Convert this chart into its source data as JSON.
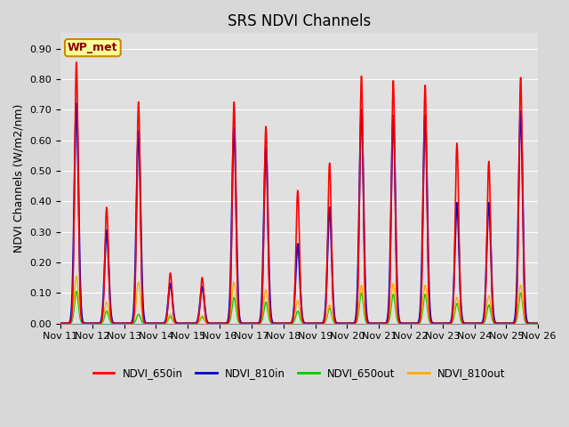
{
  "title": "SRS NDVI Channels",
  "ylabel": "NDVI Channels (W/m2/nm)",
  "site_label": "WP_met",
  "ylim": [
    0.0,
    0.95
  ],
  "yticks": [
    0.0,
    0.1,
    0.2,
    0.3,
    0.4,
    0.5,
    0.6,
    0.7,
    0.8,
    0.9
  ],
  "colors": {
    "NDVI_650in": "#ff0000",
    "NDVI_810in": "#0000cd",
    "NDVI_650out": "#00cc00",
    "NDVI_810out": "#ffaa00"
  },
  "xtick_labels": [
    "Nov 11",
    "Nov 12",
    "Nov 13",
    "Nov 14",
    "Nov 15",
    "Nov 16",
    "Nov 17",
    "Nov 18",
    "Nov 19",
    "Nov 20",
    "Nov 21",
    "Nov 22",
    "Nov 23",
    "Nov 24",
    "Nov 25",
    "Nov 26"
  ],
  "background_color": "#e0e0e0",
  "grid_color": "#ffffff",
  "site_box_facecolor": "#ffff99",
  "site_box_edgecolor": "#cc8800",
  "title_fontsize": 12,
  "label_fontsize": 9,
  "tick_fontsize": 8,
  "peaks": [
    {
      "day": 11.5,
      "r": 0.855,
      "b": 0.72,
      "g": 0.105,
      "o": 0.155
    },
    {
      "day": 12.45,
      "r": 0.38,
      "b": 0.305,
      "g": 0.04,
      "o": 0.07
    },
    {
      "day": 13.45,
      "r": 0.725,
      "b": 0.63,
      "g": 0.03,
      "o": 0.135
    },
    {
      "day": 14.45,
      "r": 0.165,
      "b": 0.13,
      "g": 0.022,
      "o": 0.03
    },
    {
      "day": 15.45,
      "r": 0.15,
      "b": 0.12,
      "g": 0.02,
      "o": 0.025
    },
    {
      "day": 16.45,
      "r": 0.725,
      "b": 0.64,
      "g": 0.085,
      "o": 0.135
    },
    {
      "day": 17.45,
      "r": 0.645,
      "b": 0.575,
      "g": 0.07,
      "o": 0.11
    },
    {
      "day": 18.45,
      "r": 0.435,
      "b": 0.26,
      "g": 0.04,
      "o": 0.075
    },
    {
      "day": 19.45,
      "r": 0.525,
      "b": 0.38,
      "g": 0.05,
      "o": 0.06
    },
    {
      "day": 20.45,
      "r": 0.81,
      "b": 0.7,
      "g": 0.1,
      "o": 0.125
    },
    {
      "day": 21.45,
      "r": 0.795,
      "b": 0.68,
      "g": 0.095,
      "o": 0.13
    },
    {
      "day": 22.45,
      "r": 0.78,
      "b": 0.68,
      "g": 0.095,
      "o": 0.125
    },
    {
      "day": 23.45,
      "r": 0.59,
      "b": 0.395,
      "g": 0.065,
      "o": 0.085
    },
    {
      "day": 24.45,
      "r": 0.53,
      "b": 0.395,
      "g": 0.06,
      "o": 0.09
    },
    {
      "day": 25.45,
      "r": 0.805,
      "b": 0.695,
      "g": 0.1,
      "o": 0.125
    }
  ],
  "sigma_r": 0.055,
  "sigma_b": 0.065,
  "sigma_g": 0.06,
  "sigma_o": 0.065
}
